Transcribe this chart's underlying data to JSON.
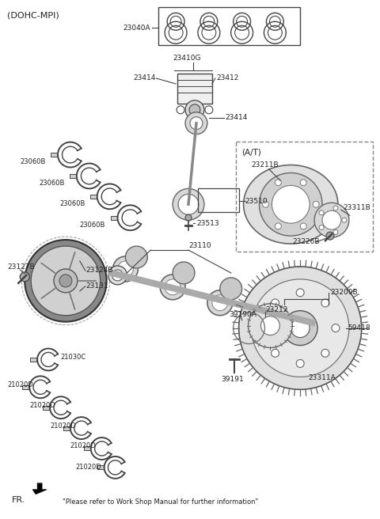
{
  "background_color": "#ffffff",
  "header_label": "(DOHC-MPI)",
  "footer_label": "FR.",
  "footer_note": "\"Please refer to Work Shop Manual for further information\"",
  "at_label": "(A/T)",
  "figsize": [
    4.8,
    6.56
  ],
  "dpi": 100
}
